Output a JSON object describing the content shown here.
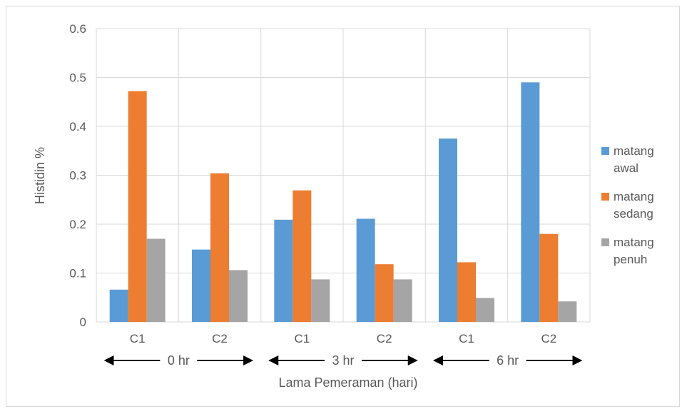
{
  "chart_data": {
    "type": "bar",
    "categories": [
      "C1",
      "C2",
      "C1",
      "C2",
      "C1",
      "C2"
    ],
    "groups": [
      "0 hr",
      "3 hr",
      "6 hr"
    ],
    "series": [
      {
        "name": "matang awal",
        "legend_lines": [
          "matang",
          "awal"
        ],
        "color": "#5b9bd5",
        "values": [
          0.066,
          0.148,
          0.209,
          0.211,
          0.375,
          0.49
        ]
      },
      {
        "name": "matang sedang",
        "legend_lines": [
          "matang",
          "sedang"
        ],
        "color": "#ed7d31",
        "values": [
          0.472,
          0.304,
          0.269,
          0.118,
          0.122,
          0.18
        ]
      },
      {
        "name": "matang penuh",
        "legend_lines": [
          "matang",
          "penuh"
        ],
        "color": "#a5a5a5",
        "values": [
          0.17,
          0.106,
          0.087,
          0.087,
          0.049,
          0.042
        ]
      }
    ],
    "ylabel": "Histidin %",
    "xlabel": "Lama Pemeraman (hari)",
    "ylim": [
      0,
      0.6
    ],
    "yticks": [
      "0",
      "0.1",
      "0.2",
      "0.3",
      "0.4",
      "0.5",
      "0.6"
    ],
    "grid": true,
    "legend_position": "right"
  }
}
